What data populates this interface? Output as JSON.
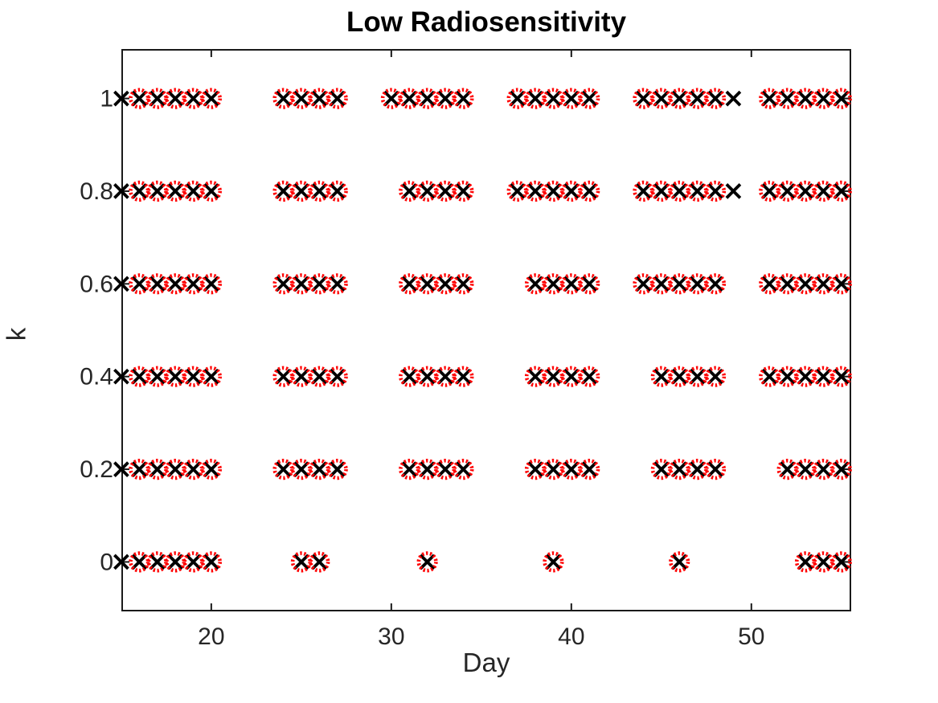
{
  "page": {
    "background": "#ffffff"
  },
  "chart_data": {
    "type": "scatter",
    "title": "Low Radiosensitivity",
    "xlabel": "Day",
    "ylabel": "k",
    "xlim": [
      15.05,
      55.5
    ],
    "ylim": [
      -0.105,
      1.105
    ],
    "xticks": [
      20,
      30,
      40,
      50
    ],
    "yticks": [
      0,
      0.2,
      0.4,
      0.6,
      0.8,
      1
    ],
    "grid": false,
    "legend": null,
    "axis_color": "#1a1a1a",
    "tick_label_color": "#262626",
    "marker_styles": {
      "x_marker": {
        "shape": "x",
        "color": "#000000"
      },
      "circle_marker": {
        "shape": "dotted-circle",
        "color": "#ff0000"
      }
    },
    "rows": [
      {
        "k": 1,
        "x_days": [
          15,
          16,
          17,
          18,
          19,
          20,
          24,
          25,
          26,
          27,
          30,
          31,
          32,
          33,
          34,
          37,
          38,
          39,
          40,
          41,
          44,
          45,
          46,
          47,
          48,
          49,
          51,
          52,
          53,
          54,
          55
        ],
        "circle_days": [
          16,
          17,
          18,
          19,
          20,
          24,
          25,
          26,
          27,
          30,
          31,
          32,
          33,
          34,
          37,
          38,
          39,
          40,
          41,
          44,
          45,
          46,
          47,
          48,
          51,
          52,
          53,
          54,
          55
        ]
      },
      {
        "k": 0.8,
        "x_days": [
          15,
          16,
          17,
          18,
          19,
          20,
          24,
          25,
          26,
          27,
          31,
          32,
          33,
          34,
          37,
          38,
          39,
          40,
          41,
          44,
          45,
          46,
          47,
          48,
          49,
          51,
          52,
          53,
          54,
          55
        ],
        "circle_days": [
          16,
          17,
          18,
          19,
          20,
          24,
          25,
          26,
          27,
          31,
          32,
          33,
          34,
          37,
          38,
          39,
          40,
          41,
          44,
          45,
          46,
          47,
          48,
          51,
          52,
          53,
          54,
          55
        ]
      },
      {
        "k": 0.6,
        "x_days": [
          15,
          16,
          17,
          18,
          19,
          20,
          24,
          25,
          26,
          27,
          31,
          32,
          33,
          34,
          38,
          39,
          40,
          41,
          44,
          45,
          46,
          47,
          48,
          51,
          52,
          53,
          54,
          55
        ],
        "circle_days": [
          16,
          17,
          18,
          19,
          20,
          24,
          25,
          26,
          27,
          31,
          32,
          33,
          34,
          38,
          39,
          40,
          41,
          44,
          45,
          46,
          47,
          48,
          51,
          52,
          53,
          54,
          55
        ]
      },
      {
        "k": 0.4,
        "x_days": [
          15,
          16,
          17,
          18,
          19,
          20,
          24,
          25,
          26,
          27,
          31,
          32,
          33,
          34,
          38,
          39,
          40,
          41,
          45,
          46,
          47,
          48,
          51,
          52,
          53,
          54,
          55
        ],
        "circle_days": [
          16,
          17,
          18,
          19,
          20,
          24,
          25,
          26,
          27,
          31,
          32,
          33,
          34,
          38,
          39,
          40,
          41,
          45,
          46,
          47,
          48,
          51,
          52,
          53,
          54,
          55
        ]
      },
      {
        "k": 0.2,
        "x_days": [
          15,
          16,
          17,
          18,
          19,
          20,
          24,
          25,
          26,
          27,
          31,
          32,
          33,
          34,
          38,
          39,
          40,
          41,
          45,
          46,
          47,
          48,
          52,
          53,
          54,
          55
        ],
        "circle_days": [
          16,
          17,
          18,
          19,
          20,
          24,
          25,
          26,
          27,
          31,
          32,
          33,
          34,
          38,
          39,
          40,
          41,
          45,
          46,
          47,
          48,
          52,
          53,
          54,
          55
        ]
      },
      {
        "k": 0,
        "x_days": [
          15,
          16,
          17,
          18,
          19,
          20,
          25,
          26,
          32,
          39,
          46,
          53,
          54,
          55
        ],
        "circle_days": [
          16,
          17,
          18,
          19,
          20,
          25,
          26,
          32,
          39,
          46,
          53,
          54,
          55
        ]
      }
    ]
  }
}
